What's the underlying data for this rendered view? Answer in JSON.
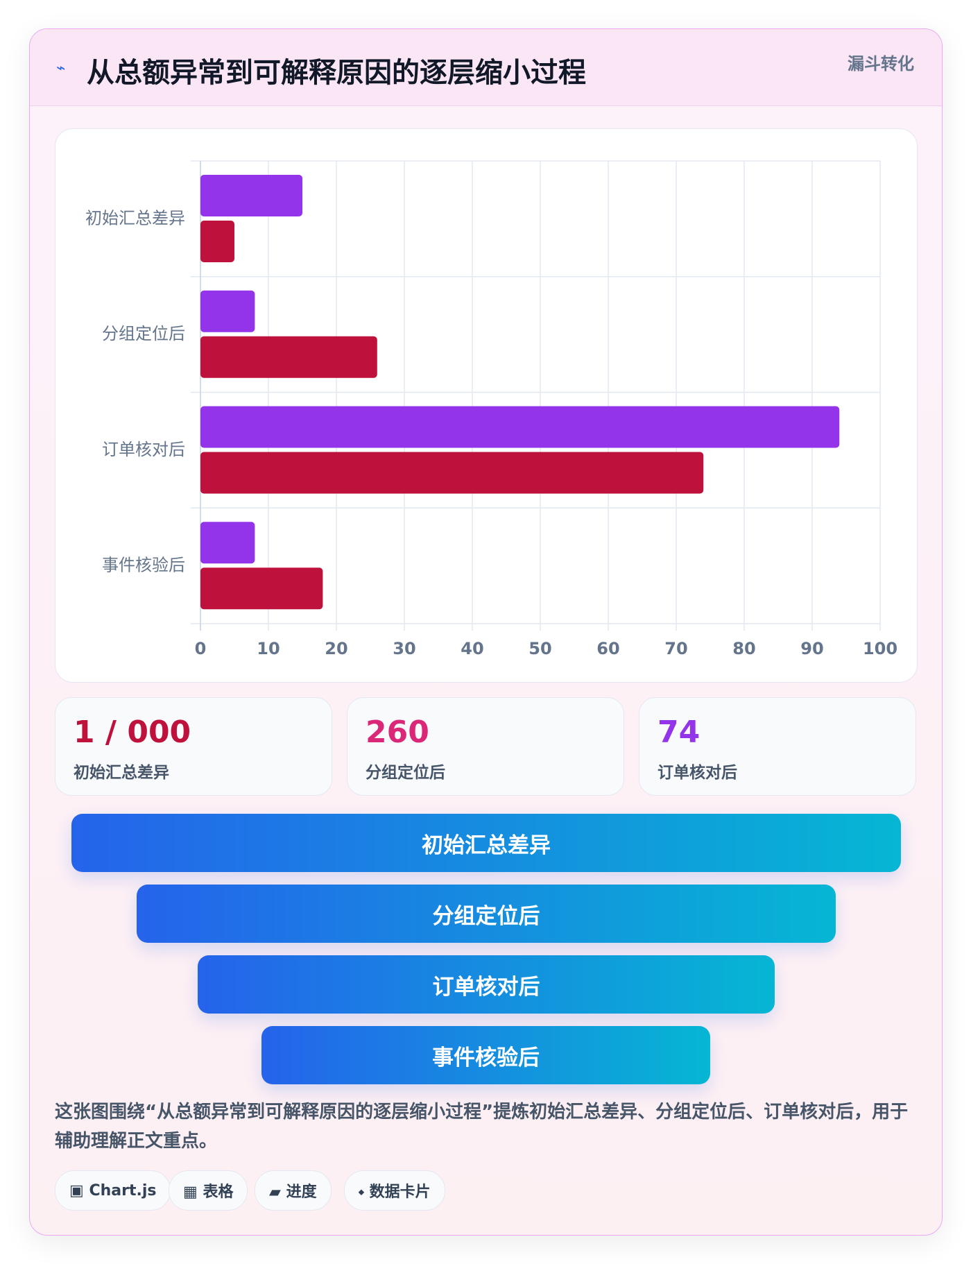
{
  "header": {
    "icon": "⌁",
    "title": "从总额异常到可解释原因的逐层缩小过程",
    "badge": "漏斗转化"
  },
  "chart_data": {
    "type": "bar",
    "orientation": "horizontal",
    "categories": [
      "初始汇总差异",
      "分组定位后",
      "订单核对后",
      "事件核验后"
    ],
    "series": [
      {
        "color": "#9333ea",
        "values": [
          15,
          8,
          94,
          8
        ]
      },
      {
        "color": "#be123c",
        "values": [
          5,
          26,
          74,
          18
        ]
      }
    ],
    "xlim": [
      0,
      100
    ],
    "xticks": [
      0,
      10,
      20,
      30,
      40,
      50,
      60,
      70,
      80,
      90,
      100
    ],
    "grid": true
  },
  "stats": [
    {
      "value": "1 / 000",
      "label": "初始汇总差异",
      "color": "#be123c"
    },
    {
      "value": "260",
      "label": "分组定位后",
      "color": "#db2777"
    },
    {
      "value": "74",
      "label": "订单核对后",
      "color": "#9333ea"
    }
  ],
  "funnel": [
    "初始汇总差异",
    "分组定位后",
    "订单核对后",
    "事件核验后"
  ],
  "description": "这张图围绕“从总额异常到可解释原因的逐层缩小过程”提炼初始汇总差异、分组定位后、订单核对后，用于辅助理解正文重点。",
  "tags": [
    "▣ Chart.js",
    "▦ 表格",
    "▰ 进度",
    "⬩ 数据卡片"
  ]
}
